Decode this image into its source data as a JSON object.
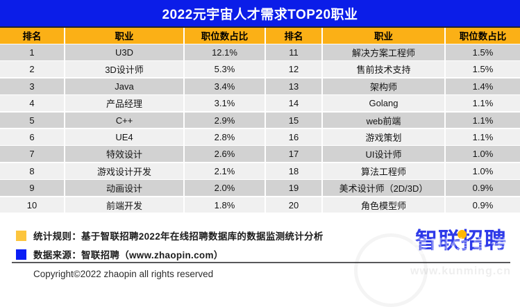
{
  "title": "2022元宇宙人才需求TOP20职业",
  "colors": {
    "title_bar_blue": "#0b1de8",
    "header_yellow": "#fbb016",
    "row_dark": "#d2d2d2",
    "row_light": "#f0f0f0",
    "legend_yellow": "#fcc53e",
    "legend_blue": "#0b1ef5",
    "logo_blue": "#2e3ae8"
  },
  "table": {
    "headers": {
      "rank": "排名",
      "job": "职业",
      "pct": "职位数占比"
    },
    "rows": [
      {
        "rank_l": "1",
        "job_l": "U3D",
        "pct_l": "12.1%",
        "rank_r": "11",
        "job_r": "解决方案工程师",
        "pct_r": "1.5%"
      },
      {
        "rank_l": "2",
        "job_l": "3D设计师",
        "pct_l": "5.3%",
        "rank_r": "12",
        "job_r": "售前技术支持",
        "pct_r": "1.5%"
      },
      {
        "rank_l": "3",
        "job_l": "Java",
        "pct_l": "3.4%",
        "rank_r": "13",
        "job_r": "架构师",
        "pct_r": "1.4%"
      },
      {
        "rank_l": "4",
        "job_l": "产品经理",
        "pct_l": "3.1%",
        "rank_r": "14",
        "job_r": "Golang",
        "pct_r": "1.1%"
      },
      {
        "rank_l": "5",
        "job_l": "C++",
        "pct_l": "2.9%",
        "rank_r": "15",
        "job_r": "web前端",
        "pct_r": "1.1%"
      },
      {
        "rank_l": "6",
        "job_l": "UE4",
        "pct_l": "2.8%",
        "rank_r": "16",
        "job_r": "游戏策划",
        "pct_r": "1.1%"
      },
      {
        "rank_l": "7",
        "job_l": "特效设计",
        "pct_l": "2.6%",
        "rank_r": "17",
        "job_r": "UI设计师",
        "pct_r": "1.0%"
      },
      {
        "rank_l": "8",
        "job_l": "游戏设计开发",
        "pct_l": "2.1%",
        "rank_r": "18",
        "job_r": "算法工程师",
        "pct_r": "1.0%"
      },
      {
        "rank_l": "9",
        "job_l": "动画设计",
        "pct_l": "2.0%",
        "rank_r": "19",
        "job_r": "美术设计师（2D/3D）",
        "pct_r": "0.9%"
      },
      {
        "rank_l": "10",
        "job_l": "前端开发",
        "pct_l": "1.8%",
        "rank_r": "20",
        "job_r": "角色模型师",
        "pct_r": "0.9%"
      }
    ]
  },
  "chart_data": {
    "type": "table",
    "title": "2022元宇宙人才需求TOP20职业",
    "columns": [
      "排名",
      "职业",
      "职位数占比"
    ],
    "rows": [
      [
        1,
        "U3D",
        "12.1%"
      ],
      [
        2,
        "3D设计师",
        "5.3%"
      ],
      [
        3,
        "Java",
        "3.4%"
      ],
      [
        4,
        "产品经理",
        "3.1%"
      ],
      [
        5,
        "C++",
        "2.9%"
      ],
      [
        6,
        "UE4",
        "2.8%"
      ],
      [
        7,
        "特效设计",
        "2.6%"
      ],
      [
        8,
        "游戏设计开发",
        "2.1%"
      ],
      [
        9,
        "动画设计",
        "2.0%"
      ],
      [
        10,
        "前端开发",
        "1.8%"
      ],
      [
        11,
        "解决方案工程师",
        "1.5%"
      ],
      [
        12,
        "售前技术支持",
        "1.5%"
      ],
      [
        13,
        "架构师",
        "1.4%"
      ],
      [
        14,
        "Golang",
        "1.1%"
      ],
      [
        15,
        "web前端",
        "1.1%"
      ],
      [
        16,
        "游戏策划",
        "1.1%"
      ],
      [
        17,
        "UI设计师",
        "1.0%"
      ],
      [
        18,
        "算法工程师",
        "1.0%"
      ],
      [
        19,
        "美术设计师（2D/3D）",
        "0.9%"
      ],
      [
        20,
        "角色模型师",
        "0.9%"
      ]
    ],
    "layout": {
      "split": "two side-by-side halves: ranks 1-10 left, 11-20 right",
      "grid": false
    }
  },
  "footer": {
    "stat_rule": "统计规则：基于智联招聘2022年在线招聘数据库的数据监测统计分析",
    "data_source": "数据来源：智联招聘（www.zhaopin.com）",
    "copyright": "Copyright©2022 zhaopin all rights reserved"
  },
  "logo": {
    "text": "智联招聘"
  },
  "watermark": {
    "name": "昆明信息港",
    "url": "www.kunming.cn"
  }
}
